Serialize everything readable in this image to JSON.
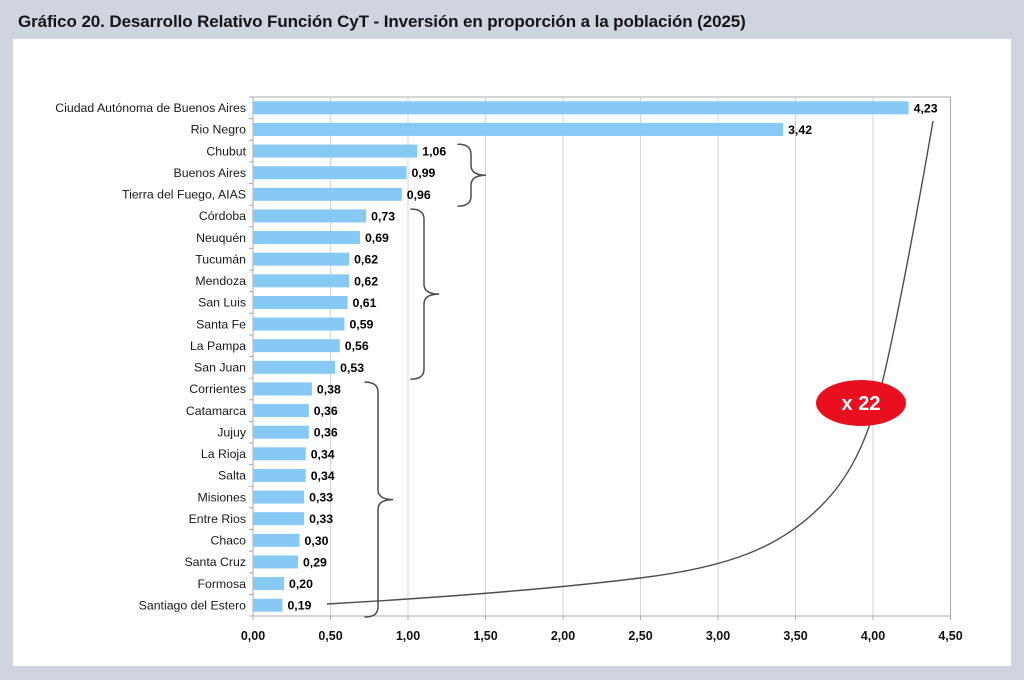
{
  "title": "Gráfico 20. Desarrollo Relativo Función CyT - Inversión en proporción a la población (2025)",
  "chart_data": {
    "type": "bar",
    "orientation": "horizontal",
    "title": "Gráfico 20. Desarrollo Relativo Función CyT - Inversión en proporción a la población (2025)",
    "categories": [
      "Ciudad Autónoma de Buenos Aires",
      "Rio Negro",
      "Chubut",
      "Buenos Aires",
      "Tierra del Fuego, AIAS",
      "Córdoba",
      "Neuquén",
      "Tucumán",
      "Mendoza",
      "San Luis",
      "Santa Fe",
      "La Pampa",
      "San Juan",
      "Corrientes",
      "Catamarca",
      "Jujuy",
      "La Rioja",
      "Salta",
      "Misiones",
      "Entre Rios",
      "Chaco",
      "Santa Cruz",
      "Formosa",
      "Santiago del Estero"
    ],
    "values": [
      4.23,
      3.42,
      1.06,
      0.99,
      0.96,
      0.73,
      0.69,
      0.62,
      0.62,
      0.61,
      0.59,
      0.56,
      0.53,
      0.38,
      0.36,
      0.36,
      0.34,
      0.34,
      0.33,
      0.33,
      0.3,
      0.29,
      0.2,
      0.19
    ],
    "value_labels": [
      "4,23",
      "3,42",
      "1,06",
      "0,99",
      "0,96",
      "0,73",
      "0,69",
      "0,62",
      "0,62",
      "0,61",
      "0,59",
      "0,56",
      "0,53",
      "0,38",
      "0,36",
      "0,36",
      "0,34",
      "0,34",
      "0,33",
      "0,33",
      "0,30",
      "0,29",
      "0,20",
      "0,19"
    ],
    "x_ticks": [
      "0,00",
      "0,50",
      "1,00",
      "1,50",
      "2,00",
      "2,50",
      "3,00",
      "3,50",
      "4,00",
      "4,50"
    ],
    "xlim": [
      0,
      4.5
    ],
    "grid": true,
    "bar_color": "#85C9F4",
    "grid_color": "#d3d3d3",
    "axis_color": "#ababab",
    "annotation": {
      "text": "x 22",
      "bg": "#E90F1F",
      "fg": "#FFFFFF"
    },
    "group_braces": [
      {
        "from_row": 2,
        "to_row": 4
      },
      {
        "from_row": 5,
        "to_row": 12
      },
      {
        "from_row": 13,
        "to_row": 23
      }
    ],
    "trend_curve": {
      "from_category": "Santiago del Estero",
      "to_category": "Ciudad Autónoma de Buenos Aires",
      "ratio_label": "x 22"
    }
  }
}
